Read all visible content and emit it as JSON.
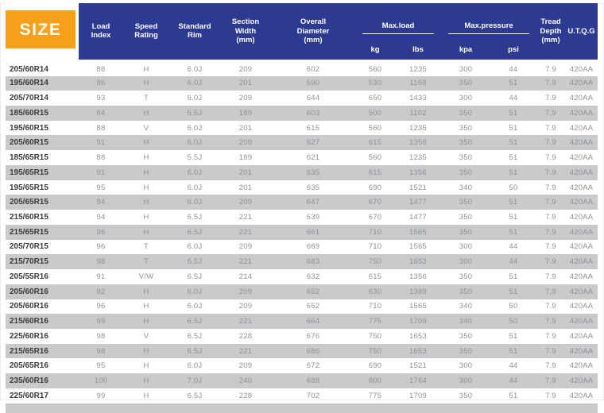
{
  "header": {
    "size": "SIZE",
    "load_index": "Load\nIndex",
    "speed_rating": "Speed\nRating",
    "standard_rim": "Standard\nRim",
    "section_width": "Section\nWidth\n(mm)",
    "overall_diameter": "Overall\nDiameter\n(mm)",
    "max_load": "Max.load",
    "max_load_kg": "kg",
    "max_load_lbs": "lbs",
    "max_pressure": "Max.pressure",
    "max_pressure_kpa": "kpa",
    "max_pressure_psi": "psi",
    "tread_depth": "Tread\nDepth\n(mm)",
    "utqg": "U.T.Q.G"
  },
  "colors": {
    "accent_orange": "#f6a01c",
    "header_blue": "#2d3a92",
    "stripe_gray": "#c9cacb"
  },
  "chart_data": {
    "type": "table",
    "columns": [
      "SIZE",
      "Load Index",
      "Speed Rating",
      "Standard Rim",
      "Section Width (mm)",
      "Overall Diameter (mm)",
      "Max.load kg",
      "Max.load lbs",
      "Max.pressure kpa",
      "Max.pressure psi",
      "Tread Depth (mm)",
      "U.T.Q.G"
    ],
    "rows": [
      [
        "205/60R14",
        "88",
        "H",
        "6.0J",
        "209",
        "602",
        "560",
        "1235",
        "300",
        "44",
        "7.9",
        "420AA"
      ],
      [
        "195/60R14",
        "86",
        "H",
        "6.0J",
        "201",
        "590",
        "530",
        "1168",
        "350",
        "51",
        "7.9",
        "420AA"
      ],
      [
        "205/70R14",
        "93",
        "T",
        "6.0J",
        "209",
        "644",
        "650",
        "1433",
        "300",
        "44",
        "7.9",
        "420AA"
      ],
      [
        "185/60R15",
        "84",
        "H",
        "5.5J",
        "189",
        "603",
        "500",
        "1102",
        "350",
        "51",
        "7.9",
        "420AA"
      ],
      [
        "195/60R15",
        "88",
        "V",
        "6.0J",
        "201",
        "615",
        "560",
        "1235",
        "350",
        "51",
        "7.9",
        "420AA"
      ],
      [
        "205/60R15",
        "91",
        "H",
        "6.0J",
        "209",
        "627",
        "615",
        "1356",
        "350",
        "51",
        "7.9",
        "420AA"
      ],
      [
        "185/65R15",
        "88",
        "H",
        "5.5J",
        "189",
        "621",
        "560",
        "1235",
        "350",
        "51",
        "7.9",
        "420AA"
      ],
      [
        "195/65R15",
        "91",
        "H",
        "6.0J",
        "201",
        "635",
        "615",
        "1356",
        "350",
        "51",
        "7.9",
        "420AA"
      ],
      [
        "195/65R15",
        "95",
        "H",
        "6.0J",
        "201",
        "635",
        "690",
        "1521",
        "340",
        "50",
        "7.9",
        "420AA"
      ],
      [
        "205/65R15",
        "94",
        "H",
        "6.0J",
        "209",
        "647",
        "670",
        "1477",
        "350",
        "51",
        "7.9",
        "420AA"
      ],
      [
        "215/60R15",
        "94",
        "H",
        "6.5J",
        "221",
        "639",
        "670",
        "1477",
        "350",
        "51",
        "7.9",
        "420AA"
      ],
      [
        "215/65R15",
        "96",
        "H",
        "6.5J",
        "221",
        "661",
        "710",
        "1565",
        "350",
        "51",
        "7.9",
        "420AA"
      ],
      [
        "205/70R15",
        "96",
        "T",
        "6.0J",
        "209",
        "669",
        "710",
        "1565",
        "300",
        "44",
        "7.9",
        "420AA"
      ],
      [
        "215/70R15",
        "98",
        "T",
        "6.5J",
        "221",
        "683",
        "750",
        "1653",
        "300",
        "44",
        "7.9",
        "420AA"
      ],
      [
        "205/55R16",
        "91",
        "V/W",
        "6.5J",
        "214",
        "632",
        "615",
        "1356",
        "350",
        "51",
        "7.9",
        "420AA"
      ],
      [
        "205/60R16",
        "92",
        "H",
        "6.0J",
        "209",
        "652",
        "630",
        "1389",
        "350",
        "51",
        "7.9",
        "420AA"
      ],
      [
        "205/60R16",
        "96",
        "H",
        "6.0J",
        "209",
        "652",
        "710",
        "1565",
        "340",
        "50",
        "7.9",
        "420AA"
      ],
      [
        "215/60R16",
        "99",
        "H",
        "6.5J",
        "221",
        "664",
        "775",
        "1709",
        "340",
        "50",
        "7.9",
        "420AA"
      ],
      [
        "225/60R16",
        "98",
        "V",
        "6.5J",
        "228",
        "676",
        "750",
        "1653",
        "350",
        "51",
        "7.9",
        "420AA"
      ],
      [
        "215/65R16",
        "98",
        "H",
        "6.5J",
        "221",
        "686",
        "750",
        "1653",
        "350",
        "51",
        "7.9",
        "420AA"
      ],
      [
        "205/65R16",
        "95",
        "H",
        "6.0J",
        "209",
        "672",
        "690",
        "1521",
        "300",
        "44",
        "7.9",
        "420AA"
      ],
      [
        "235/60R16",
        "100",
        "H",
        "7.0J",
        "240",
        "688",
        "800",
        "1764",
        "300",
        "44",
        "7.9",
        "420AA"
      ],
      [
        "225/60R17",
        "99",
        "H",
        "6.5J",
        "228",
        "702",
        "775",
        "1709",
        "350",
        "51",
        "7.9",
        "420AA"
      ]
    ]
  }
}
